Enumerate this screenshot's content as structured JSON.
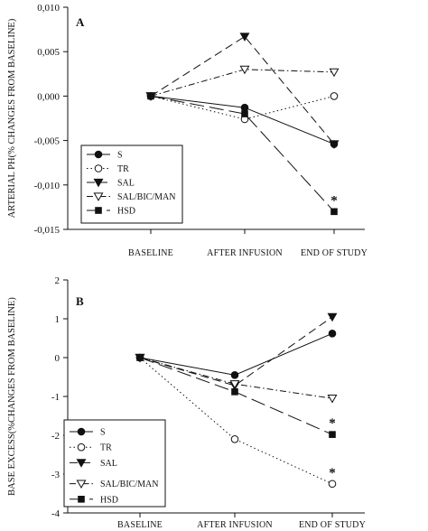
{
  "chart_data": [
    {
      "panel": "A",
      "type": "line",
      "ylabel": "ARTERIAL PH(% CHANGES FROM BASELINE)",
      "categories": [
        "BASELINE",
        "AFTER INFUSION",
        "END OF STUDY"
      ],
      "ylim": [
        -0.015,
        0.01
      ],
      "yticks": [
        "0,010",
        "0,005",
        "0,000",
        "-0,005",
        "-0,010",
        "-0,015"
      ],
      "ytick_values": [
        0.01,
        0.005,
        0.0,
        -0.005,
        -0.01,
        -0.015
      ],
      "grid": false,
      "legend_position": "bottom-left",
      "series": [
        {
          "name": "S",
          "values": [
            0.0,
            -0.0013,
            -0.0054
          ],
          "marker": "circle-filled",
          "dash": "solid"
        },
        {
          "name": "TR",
          "values": [
            0.0,
            -0.0026,
            0.0
          ],
          "marker": "circle-open",
          "dash": "dotted"
        },
        {
          "name": "SAL",
          "values": [
            0.0,
            0.0067,
            -0.0054
          ],
          "marker": "triangle-down-filled",
          "dash": "dashed"
        },
        {
          "name": "SAL/BIC/MAN",
          "values": [
            0.0,
            0.003,
            0.0027
          ],
          "marker": "triangle-down-open",
          "dash": "dashdot"
        },
        {
          "name": "HSD",
          "values": [
            0.0,
            -0.002,
            -0.013
          ],
          "marker": "square-filled",
          "dash": "longdash"
        }
      ],
      "annotations": [
        {
          "text": "*",
          "series": "HSD",
          "category": "END OF STUDY",
          "value": -0.013
        }
      ]
    },
    {
      "panel": "B",
      "type": "line",
      "ylabel": "BASE EXCESS(%CHANGES FROM BASELINE)",
      "categories": [
        "BASELINE",
        "AFTER INFUSION",
        "END OF STUDY"
      ],
      "ylim": [
        -4,
        2
      ],
      "yticks": [
        "2",
        "1",
        "0",
        "-1",
        "-2",
        "-3",
        "-4"
      ],
      "ytick_values": [
        2,
        1,
        0,
        -1,
        -2,
        -3,
        -4
      ],
      "grid": false,
      "legend_position": "bottom-left",
      "series": [
        {
          "name": "S",
          "values": [
            0.0,
            -0.45,
            0.62
          ],
          "marker": "circle-filled",
          "dash": "solid"
        },
        {
          "name": "TR",
          "values": [
            0.0,
            -2.1,
            -3.25
          ],
          "marker": "circle-open",
          "dash": "dotted"
        },
        {
          "name": "SAL",
          "values": [
            0.0,
            -0.72,
            1.05
          ],
          "marker": "triangle-down-filled",
          "dash": "dashed"
        },
        {
          "name": "SAL/BIC/MAN",
          "values": [
            0.0,
            -0.68,
            -1.05
          ],
          "marker": "triangle-down-open",
          "dash": "dashdot"
        },
        {
          "name": "HSD",
          "values": [
            0.0,
            -0.88,
            -1.98
          ],
          "marker": "square-filled",
          "dash": "longdash"
        }
      ],
      "annotations": [
        {
          "text": "*",
          "series": "HSD",
          "category": "END OF STUDY",
          "value": -1.98
        },
        {
          "text": "*",
          "series": "TR",
          "category": "END OF STUDY",
          "value": -3.25
        }
      ]
    }
  ]
}
